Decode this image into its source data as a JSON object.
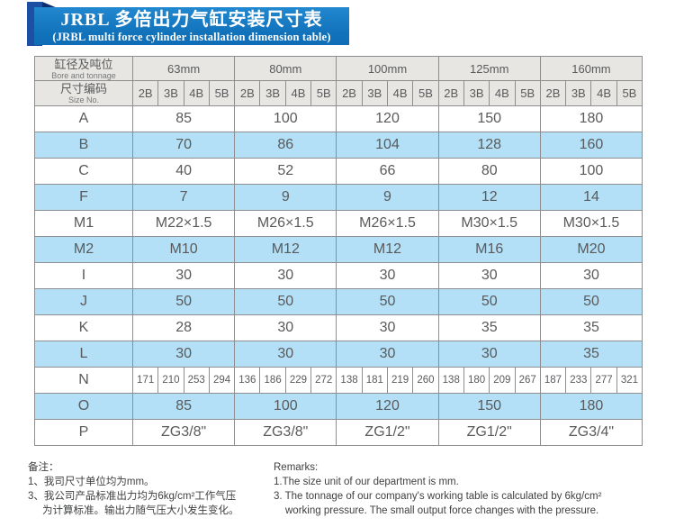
{
  "banner": {
    "title_zh": "JRBL 多倍出力气缸安装尺寸表",
    "title_en": "(JRBL multi force cylinder installation dimension table)"
  },
  "table": {
    "header": {
      "bore_zh": "缸径及吨位",
      "bore_en": "Bore and tonnage",
      "size_no_zh": "尺寸编码",
      "size_no_en": "Size No.",
      "bores": [
        "63mm",
        "80mm",
        "100mm",
        "125mm",
        "160mm"
      ],
      "codes": [
        "2B",
        "3B",
        "4B",
        "5B"
      ]
    },
    "rows": [
      {
        "label": "A",
        "merged": true,
        "values": [
          "85",
          "100",
          "120",
          "150",
          "180"
        ]
      },
      {
        "label": "B",
        "merged": true,
        "values": [
          "70",
          "86",
          "104",
          "128",
          "160"
        ]
      },
      {
        "label": "C",
        "merged": true,
        "values": [
          "40",
          "52",
          "66",
          "80",
          "100"
        ]
      },
      {
        "label": "F",
        "merged": true,
        "values": [
          "7",
          "9",
          "9",
          "12",
          "14"
        ]
      },
      {
        "label": "M1",
        "merged": true,
        "values": [
          "M22×1.5",
          "M26×1.5",
          "M26×1.5",
          "M30×1.5",
          "M30×1.5"
        ]
      },
      {
        "label": "M2",
        "merged": true,
        "values": [
          "M10",
          "M12",
          "M12",
          "M16",
          "M20"
        ]
      },
      {
        "label": "I",
        "merged": true,
        "values": [
          "30",
          "30",
          "30",
          "30",
          "30"
        ]
      },
      {
        "label": "J",
        "merged": true,
        "values": [
          "50",
          "50",
          "50",
          "50",
          "50"
        ]
      },
      {
        "label": "K",
        "merged": true,
        "values": [
          "28",
          "30",
          "30",
          "35",
          "35"
        ]
      },
      {
        "label": "L",
        "merged": true,
        "values": [
          "30",
          "30",
          "30",
          "30",
          "35"
        ]
      },
      {
        "label": "N",
        "merged": false,
        "values": [
          "171",
          "210",
          "253",
          "294",
          "136",
          "186",
          "229",
          "272",
          "138",
          "181",
          "219",
          "260",
          "138",
          "180",
          "209",
          "267",
          "187",
          "233",
          "277",
          "321"
        ]
      },
      {
        "label": "O",
        "merged": true,
        "values": [
          "85",
          "100",
          "120",
          "150",
          "180"
        ]
      },
      {
        "label": "P",
        "merged": true,
        "values": [
          "ZG3/8\"",
          "ZG3/8\"",
          "ZG1/2\"",
          "ZG1/2\"",
          "ZG3/4\""
        ]
      }
    ]
  },
  "notes": {
    "zh": {
      "title": "备注：",
      "lines": [
        "1、我司尺寸单位均为mm。",
        "3、我公司产品标准出力均为6kg/cm²工作气压",
        "为计算标准。输出力随气压大小发生变化。"
      ]
    },
    "en": {
      "title": "Remarks:",
      "lines": [
        "1.The size unit of our department is mm.",
        "3. The tonnage of our company's working table is calculated by 6kg/cm²",
        "working pressure. The small output force changes with the pressure."
      ]
    }
  },
  "colors": {
    "banner_blue": "#1a7cc2",
    "ribbon_blue": "#1d4fa3",
    "fold_navy": "#0d2e6e",
    "row_alt_blue": "#b3e0f6",
    "header_gray": "#e7e6e3",
    "grid_border": "#8e8e8e",
    "table_text": "#595a5c"
  }
}
